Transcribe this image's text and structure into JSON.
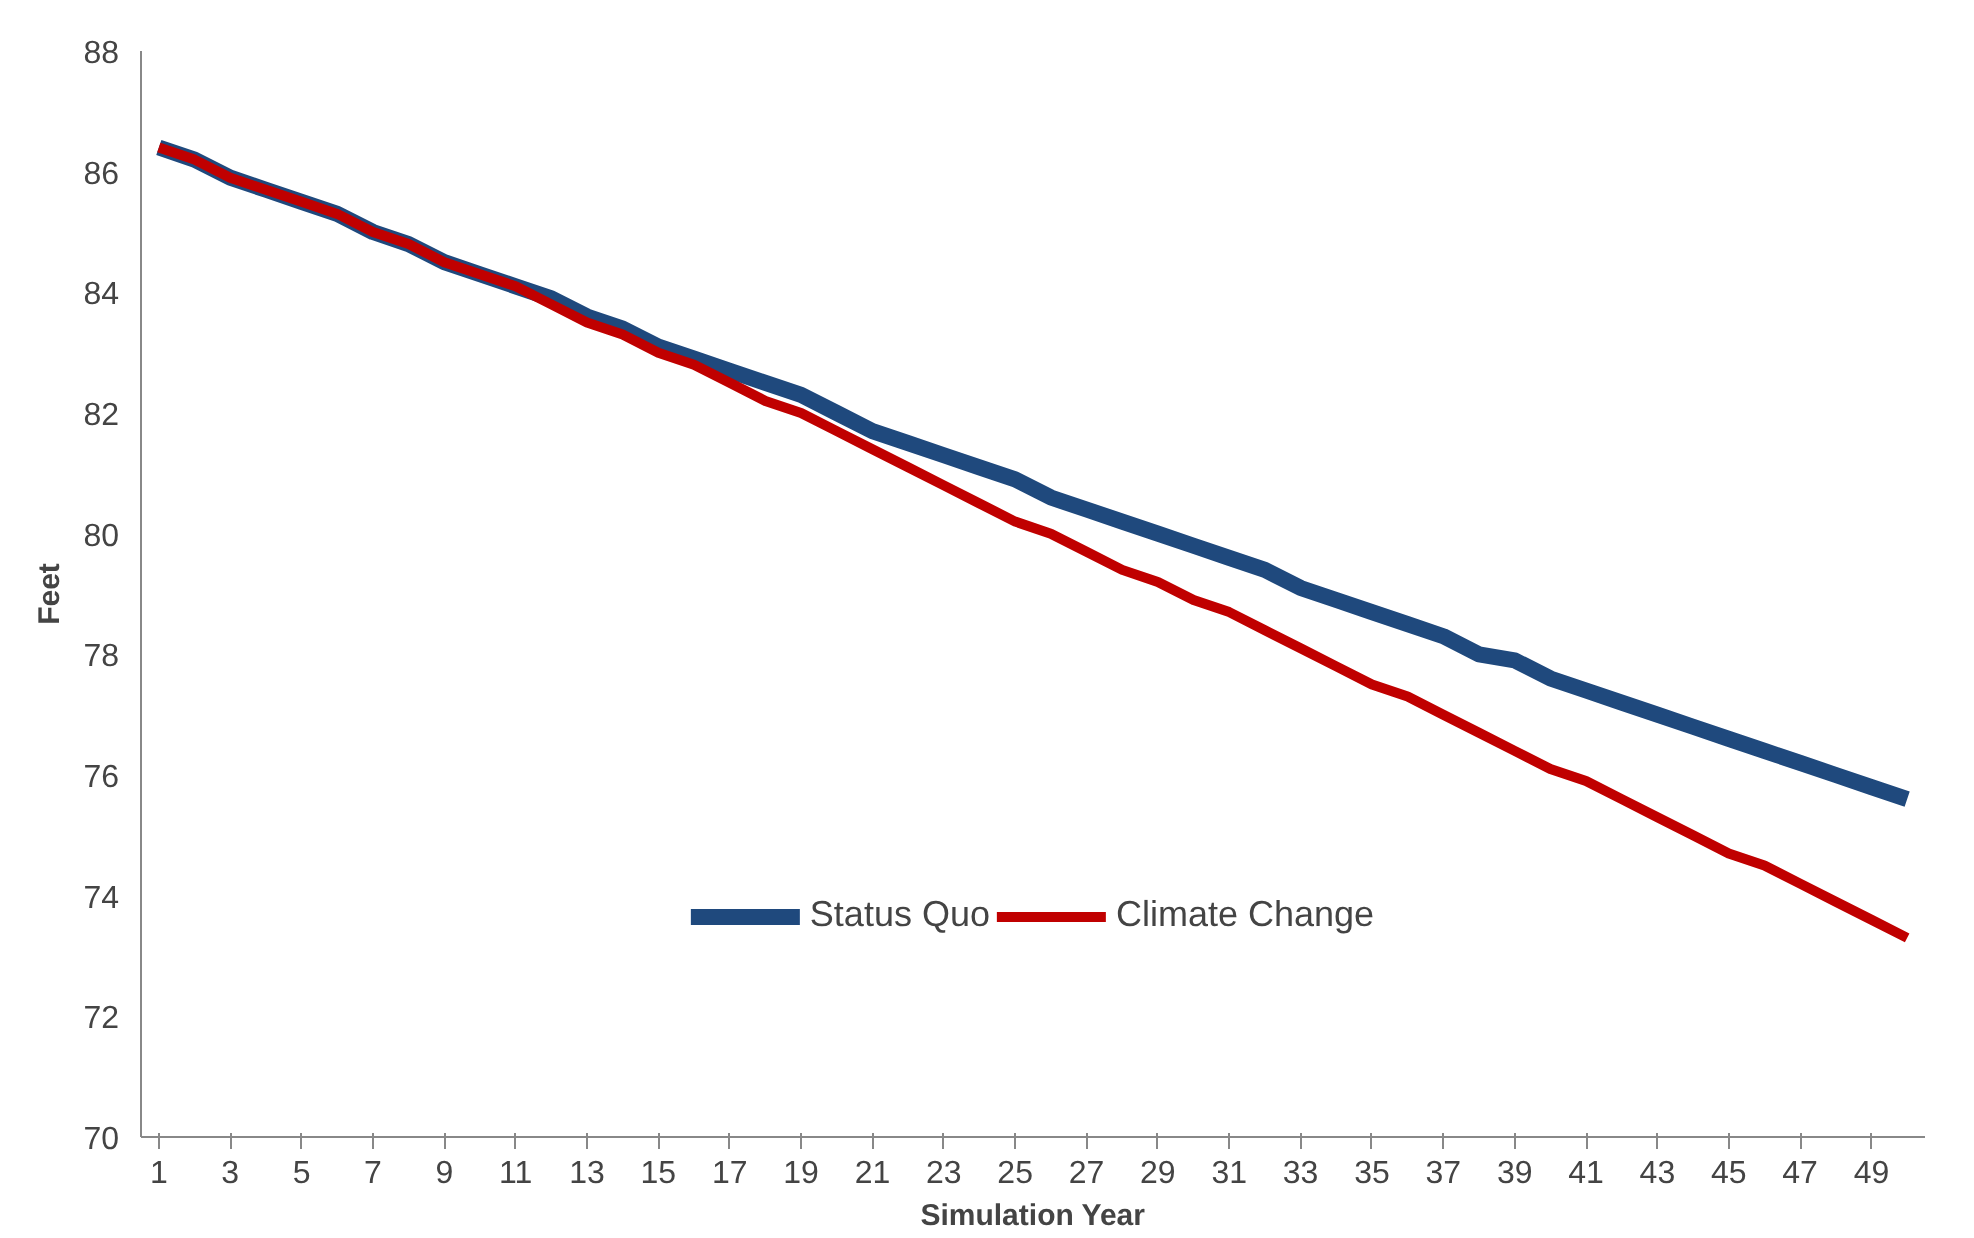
{
  "chart_data": {
    "type": "line",
    "xlabel": "Simulation Year",
    "ylabel": "Feet",
    "x": [
      1,
      2,
      3,
      4,
      5,
      6,
      7,
      8,
      9,
      10,
      11,
      12,
      13,
      14,
      15,
      16,
      17,
      18,
      19,
      20,
      21,
      22,
      23,
      24,
      25,
      26,
      27,
      28,
      29,
      30,
      31,
      32,
      33,
      34,
      35,
      36,
      37,
      38,
      39,
      40,
      41,
      42,
      43,
      44,
      45,
      46,
      47,
      48,
      49,
      50
    ],
    "series": [
      {
        "name": "Status Quo",
        "color": "#1f497d",
        "values": [
          86.4,
          86.2,
          85.9,
          85.7,
          85.5,
          85.3,
          85.0,
          84.8,
          84.5,
          84.3,
          84.1,
          83.9,
          83.6,
          83.4,
          83.1,
          82.9,
          82.7,
          82.5,
          82.3,
          82.0,
          81.7,
          81.5,
          81.3,
          81.1,
          80.9,
          80.6,
          80.4,
          80.2,
          80.0,
          79.8,
          79.6,
          79.4,
          79.1,
          78.9,
          78.7,
          78.5,
          78.3,
          78.0,
          77.9,
          77.6,
          77.4,
          77.2,
          77.0,
          76.8,
          76.6,
          76.4,
          76.2,
          76.0,
          75.8,
          75.6
        ]
      },
      {
        "name": "Climate Change",
        "color": "#c00000",
        "values": [
          86.4,
          86.2,
          85.9,
          85.7,
          85.5,
          85.3,
          85.0,
          84.8,
          84.5,
          84.3,
          84.1,
          83.8,
          83.5,
          83.3,
          83.0,
          82.8,
          82.5,
          82.2,
          82.0,
          81.7,
          81.4,
          81.1,
          80.8,
          80.5,
          80.2,
          80.0,
          79.7,
          79.4,
          79.2,
          78.9,
          78.7,
          78.4,
          78.1,
          77.8,
          77.5,
          77.3,
          77.0,
          76.7,
          76.4,
          76.1,
          75.9,
          75.6,
          75.3,
          75.0,
          74.7,
          74.5,
          74.2,
          73.9,
          73.6,
          73.3
        ]
      }
    ],
    "xlim": [
      0.5,
      50.5
    ],
    "xticks": [
      1,
      3,
      5,
      7,
      9,
      11,
      13,
      15,
      17,
      19,
      21,
      23,
      25,
      27,
      29,
      31,
      33,
      35,
      37,
      39,
      41,
      43,
      45,
      47,
      49
    ],
    "ylim": [
      70,
      88
    ],
    "yticks": [
      70,
      72,
      74,
      76,
      78,
      80,
      82,
      84,
      86,
      88
    ],
    "grid": false,
    "legend": "bottom",
    "marker": "none",
    "line_style": "solid"
  }
}
